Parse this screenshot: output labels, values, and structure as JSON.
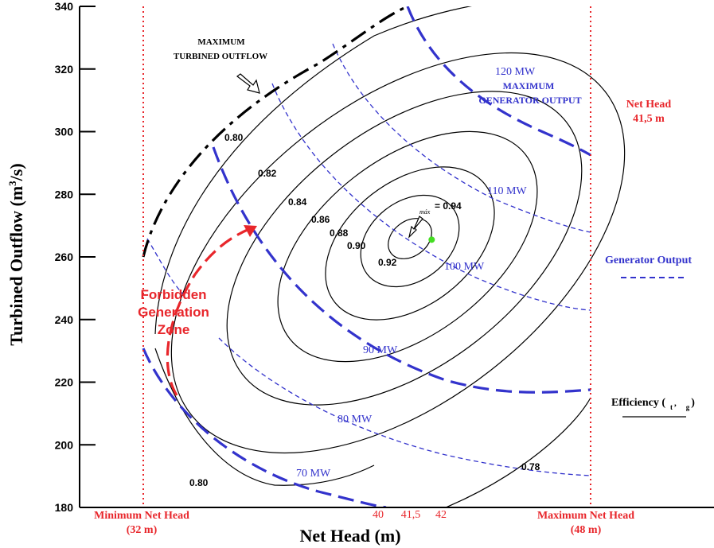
{
  "chart_data": {
    "type": "contour",
    "xlabel": "Net Head (m)",
    "ylabel": "Turbined Outflow (m3/s)",
    "xlim": [
      30,
      50
    ],
    "ylim": [
      180,
      340
    ],
    "yticks": [
      180,
      200,
      220,
      240,
      260,
      280,
      300,
      320,
      340
    ],
    "xticks_red": [
      "40",
      "41,5",
      "42"
    ],
    "min_net_head": {
      "x": 32,
      "label": "Minimum Net Head",
      "sub": "(32 m)"
    },
    "max_net_head": {
      "x": 48,
      "label": "Maximum Net Head",
      "sub": "(48 m)"
    },
    "net_head_line": {
      "label": "Net Head",
      "sub": "41,5 m"
    },
    "efficiency_contours": [
      "0.78",
      "0.80",
      "0.80",
      "0.82",
      "0.84",
      "0.86",
      "0.88",
      "0.90",
      "0.92"
    ],
    "max_efficiency": {
      "label": "máx",
      "value": "= 0.94",
      "x": 41.1,
      "y": 265.5
    },
    "generator_output_curves": [
      "70 MW",
      "80 MW",
      "90 MW",
      "100 MW",
      "110 MW",
      "120 MW"
    ],
    "generator_max_caption": [
      "MAXIMUM",
      "GENERATOR OUTPUT"
    ],
    "max_outflow_caption": [
      "MAXIMUM",
      "TURBINED OUTFLOW"
    ],
    "forbidden_zone": [
      "Forbidden",
      "Generation",
      "Zone"
    ],
    "legend": {
      "generator_output": "Generator Output",
      "efficiency": "Efficiency (",
      "efficiency_sub_t": "t",
      "efficiency_sub_g": "g",
      "efficiency_close": ")"
    },
    "colors": {
      "contour": "#000000",
      "generator": "#3333cc",
      "limits": "#e8262b",
      "max_point": "#44dd22"
    }
  }
}
